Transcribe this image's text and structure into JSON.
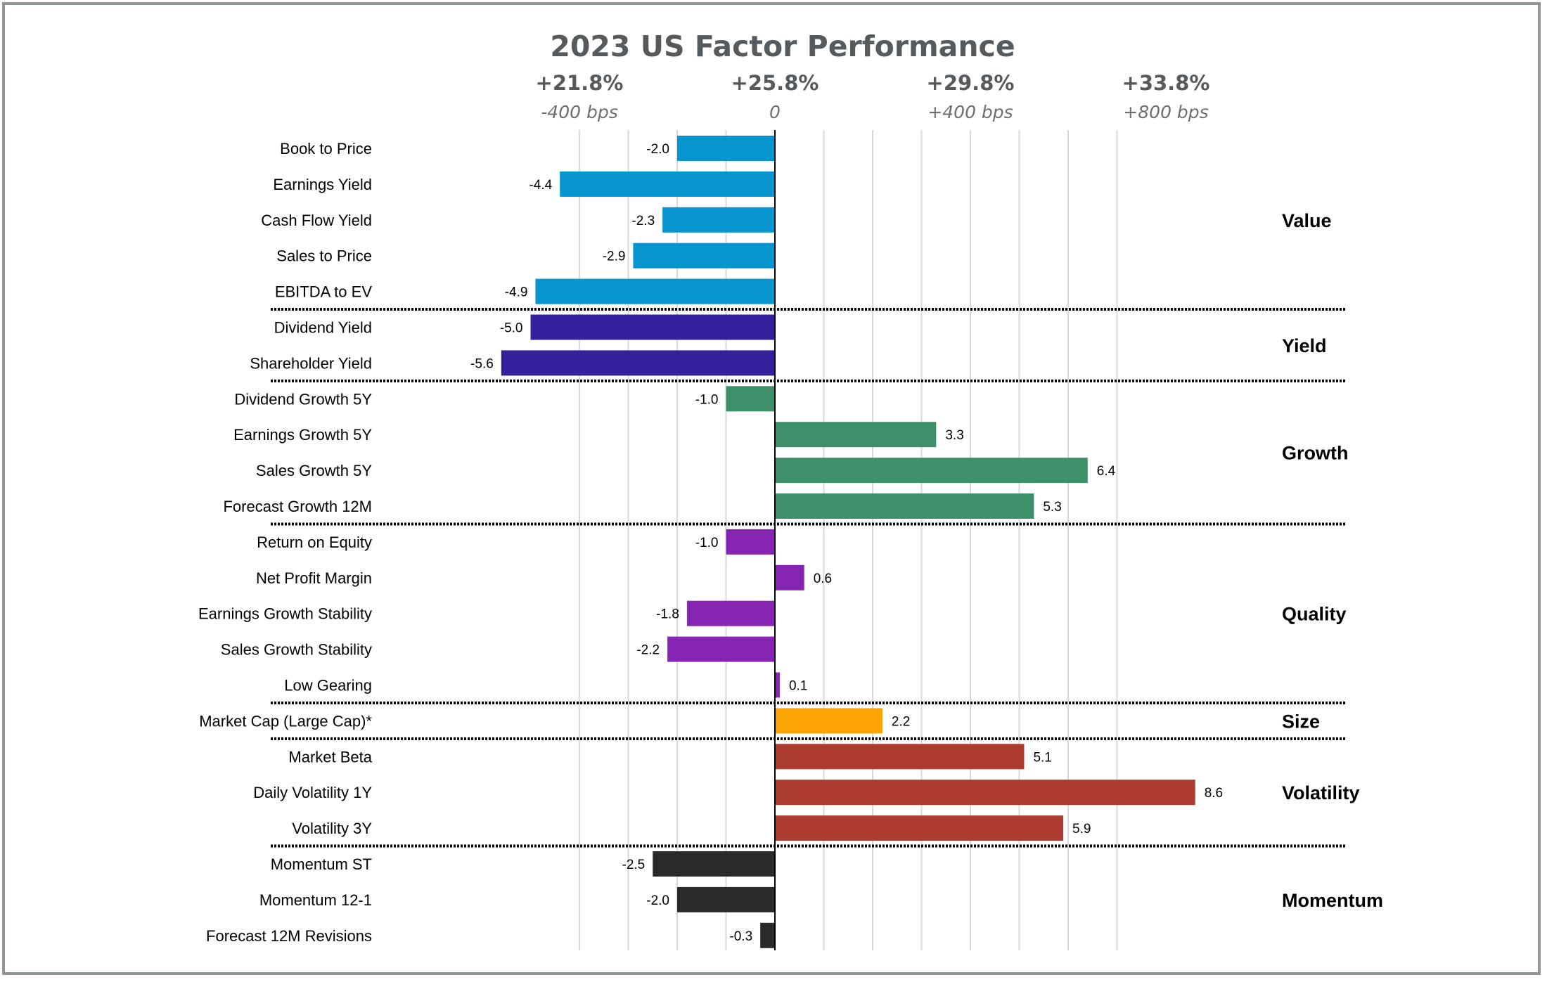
{
  "chart_data": {
    "type": "bar",
    "orientation": "horizontal",
    "title": "2023 US Factor Performance",
    "baseline": 0,
    "xlim": [
      -8,
      10
    ],
    "x_ticks": [
      {
        "value": -4,
        "label": "+21.8%",
        "sublabel": "-400 bps"
      },
      {
        "value": 0,
        "label": "+25.8%",
        "sublabel": "0"
      },
      {
        "value": 4,
        "label": "+29.8%",
        "sublabel": "+400 bps"
      },
      {
        "value": 8,
        "label": "+33.8%",
        "sublabel": "+800 bps"
      }
    ],
    "grid": true,
    "groups": [
      {
        "name": "Value",
        "color": "#0795cf",
        "factors": [
          {
            "label": "Book to Price",
            "value": -2.0,
            "value_label": "-2.0"
          },
          {
            "label": "Earnings Yield",
            "value": -4.4,
            "value_label": "-4.4"
          },
          {
            "label": "Cash Flow Yield",
            "value": -2.3,
            "value_label": "-2.3"
          },
          {
            "label": "Sales to Price",
            "value": -2.9,
            "value_label": "-2.9"
          },
          {
            "label": "EBITDA to EV",
            "value": -4.9,
            "value_label": "-4.9"
          }
        ]
      },
      {
        "name": "Yield",
        "color": "#34209a",
        "factors": [
          {
            "label": "Dividend Yield",
            "value": -5.0,
            "value_label": "-5.0"
          },
          {
            "label": "Shareholder Yield",
            "value": -5.6,
            "value_label": "-5.6"
          }
        ]
      },
      {
        "name": "Growth",
        "color": "#3d9068",
        "factors": [
          {
            "label": "Dividend Growth 5Y",
            "value": -1.0,
            "value_label": "-1.0"
          },
          {
            "label": "Earnings Growth 5Y",
            "value": 3.3,
            "value_label": "3.3"
          },
          {
            "label": "Sales Growth 5Y",
            "value": 6.4,
            "value_label": "6.4"
          },
          {
            "label": "Forecast Growth 12M",
            "value": 5.3,
            "value_label": "5.3"
          }
        ]
      },
      {
        "name": "Quality",
        "color": "#8624b3",
        "factors": [
          {
            "label": "Return on Equity",
            "value": -1.0,
            "value_label": "-1.0"
          },
          {
            "label": "Net Profit Margin",
            "value": 0.6,
            "value_label": "0.6"
          },
          {
            "label": "Earnings Growth Stability",
            "value": -1.8,
            "value_label": "-1.8"
          },
          {
            "label": "Sales Growth Stability",
            "value": -2.2,
            "value_label": "-2.2"
          },
          {
            "label": "Low Gearing",
            "value": 0.1,
            "value_label": "0.1"
          }
        ]
      },
      {
        "name": "Size",
        "color": "#fba404",
        "factors": [
          {
            "label": "Market Cap (Large Cap)*",
            "value": 2.2,
            "value_label": "2.2"
          }
        ]
      },
      {
        "name": "Volatility",
        "color": "#ad3c30",
        "factors": [
          {
            "label": "Market Beta",
            "value": 5.1,
            "value_label": "5.1"
          },
          {
            "label": "Daily Volatility 1Y",
            "value": 8.6,
            "value_label": "8.6"
          },
          {
            "label": "Volatility 3Y",
            "value": 5.9,
            "value_label": "5.9"
          }
        ]
      },
      {
        "name": "Momentum",
        "color": "#2a2a2a",
        "factors": [
          {
            "label": "Momentum ST",
            "value": -2.5,
            "value_label": "-2.5"
          },
          {
            "label": "Momentum 12-1",
            "value": -2.0,
            "value_label": "-2.0"
          },
          {
            "label": "Forecast 12M Revisions",
            "value": -0.3,
            "value_label": "-0.3"
          }
        ]
      }
    ]
  }
}
